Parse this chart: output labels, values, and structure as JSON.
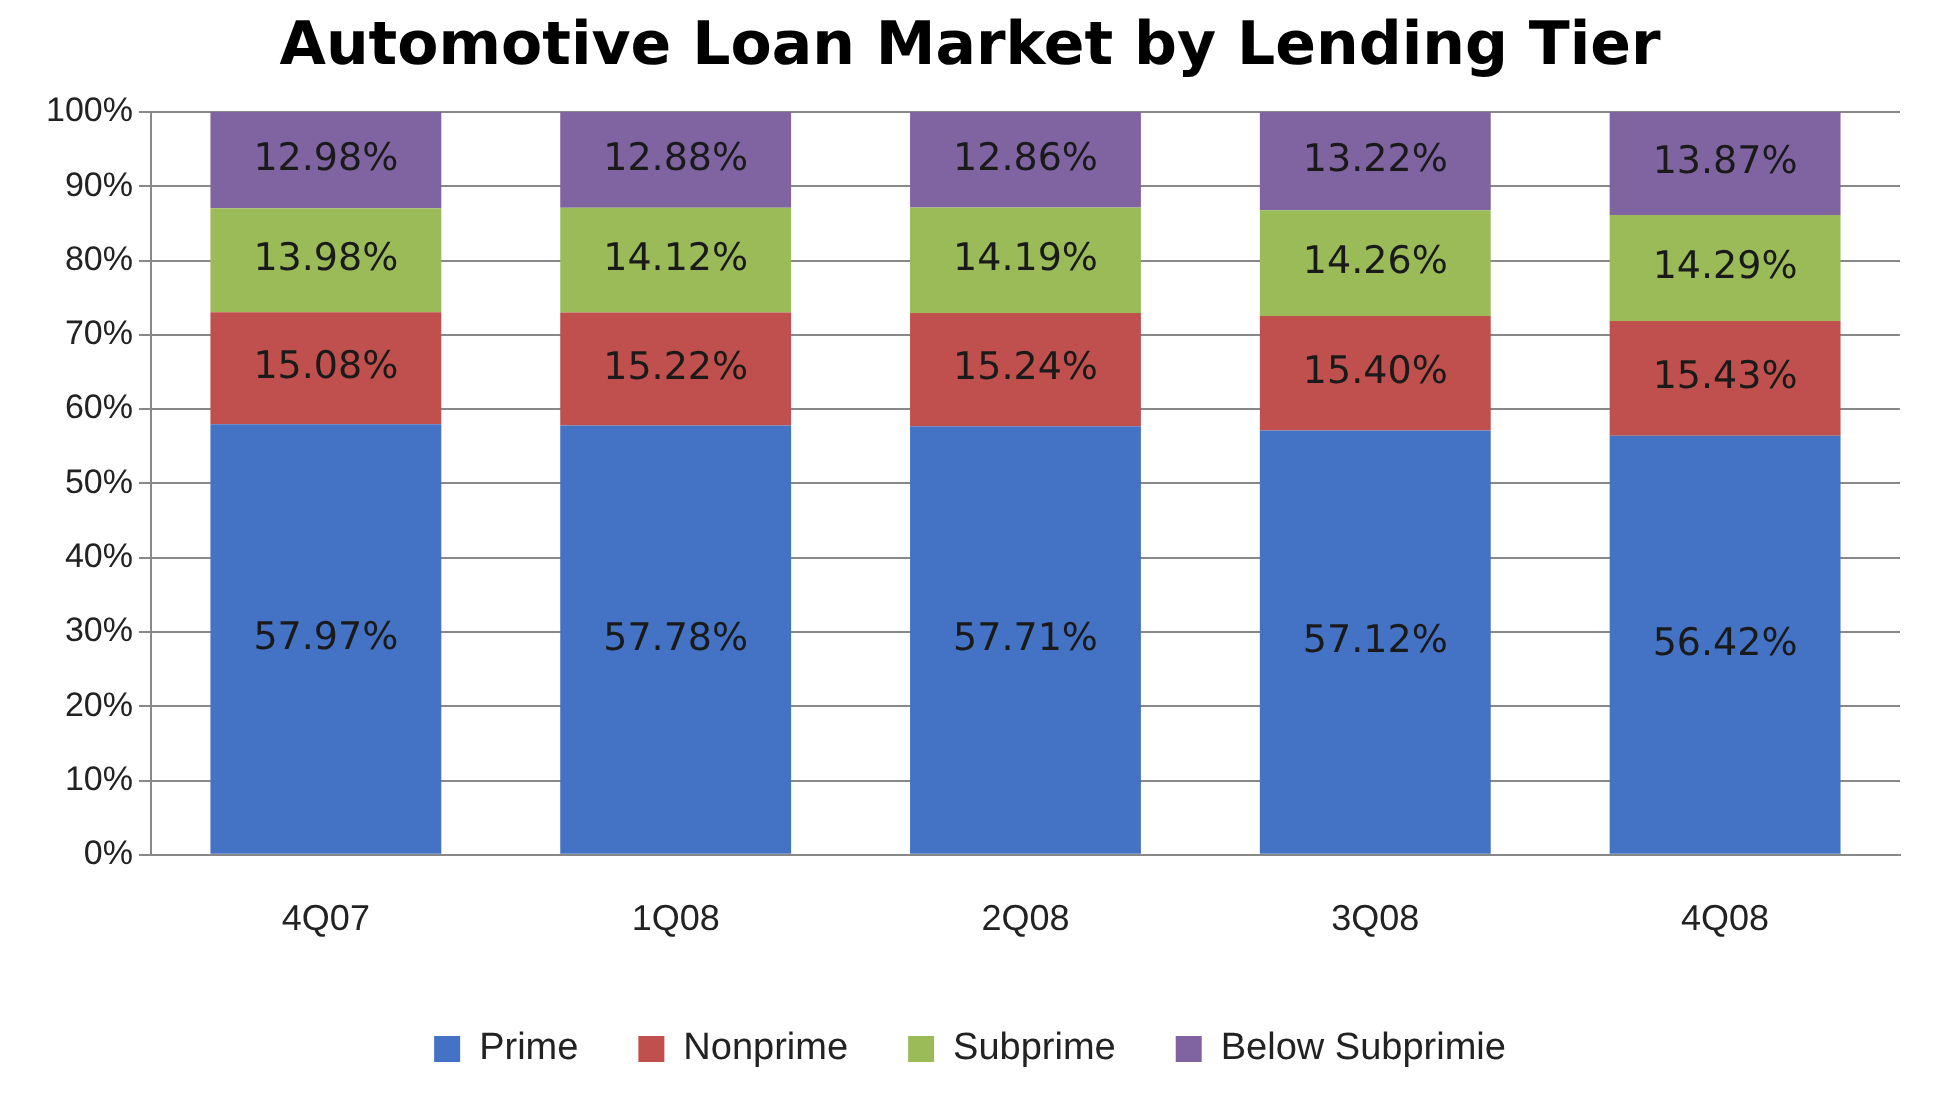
{
  "chart_data": {
    "type": "bar",
    "title": "Automotive Loan Market by Lending Tier",
    "categories": [
      "4Q07",
      "1Q08",
      "2Q08",
      "3Q08",
      "4Q08"
    ],
    "stacked": true,
    "series": [
      {
        "name": "Prime",
        "color": "#4472c4",
        "values": [
          57.97,
          57.78,
          57.71,
          57.12,
          56.42
        ],
        "value_labels": [
          "57.97%",
          "57.78%",
          "57.71%",
          "57.12%",
          "56.42%"
        ]
      },
      {
        "name": "Nonprime",
        "color": "#c0504d",
        "values": [
          15.08,
          15.22,
          15.24,
          15.4,
          15.43
        ],
        "value_labels": [
          "15.08%",
          "15.22%",
          "15.24%",
          "15.40%",
          "15.43%"
        ]
      },
      {
        "name": "Subprime",
        "color": "#9bbb59",
        "values": [
          13.98,
          14.12,
          14.19,
          14.26,
          14.29
        ],
        "value_labels": [
          "13.98%",
          "14.12%",
          "14.19%",
          "14.26%",
          "14.29%"
        ]
      },
      {
        "name": "Below Subprimie",
        "color": "#8064a2",
        "values": [
          12.98,
          12.88,
          12.86,
          13.22,
          13.87
        ],
        "value_labels": [
          "12.98%",
          "12.88%",
          "12.86%",
          "13.22%",
          "13.87%"
        ]
      }
    ],
    "ylim": [
      0,
      100
    ],
    "yticks": [
      {
        "value": 0,
        "label": "0%"
      },
      {
        "value": 10,
        "label": "10%"
      },
      {
        "value": 20,
        "label": "20%"
      },
      {
        "value": 30,
        "label": "30%"
      },
      {
        "value": 40,
        "label": "40%"
      },
      {
        "value": 50,
        "label": "50%"
      },
      {
        "value": 60,
        "label": "60%"
      },
      {
        "value": 70,
        "label": "70%"
      },
      {
        "value": 80,
        "label": "80%"
      },
      {
        "value": 90,
        "label": "90%"
      },
      {
        "value": 100,
        "label": "100%"
      }
    ],
    "grid": "y",
    "legend": "bottom"
  }
}
